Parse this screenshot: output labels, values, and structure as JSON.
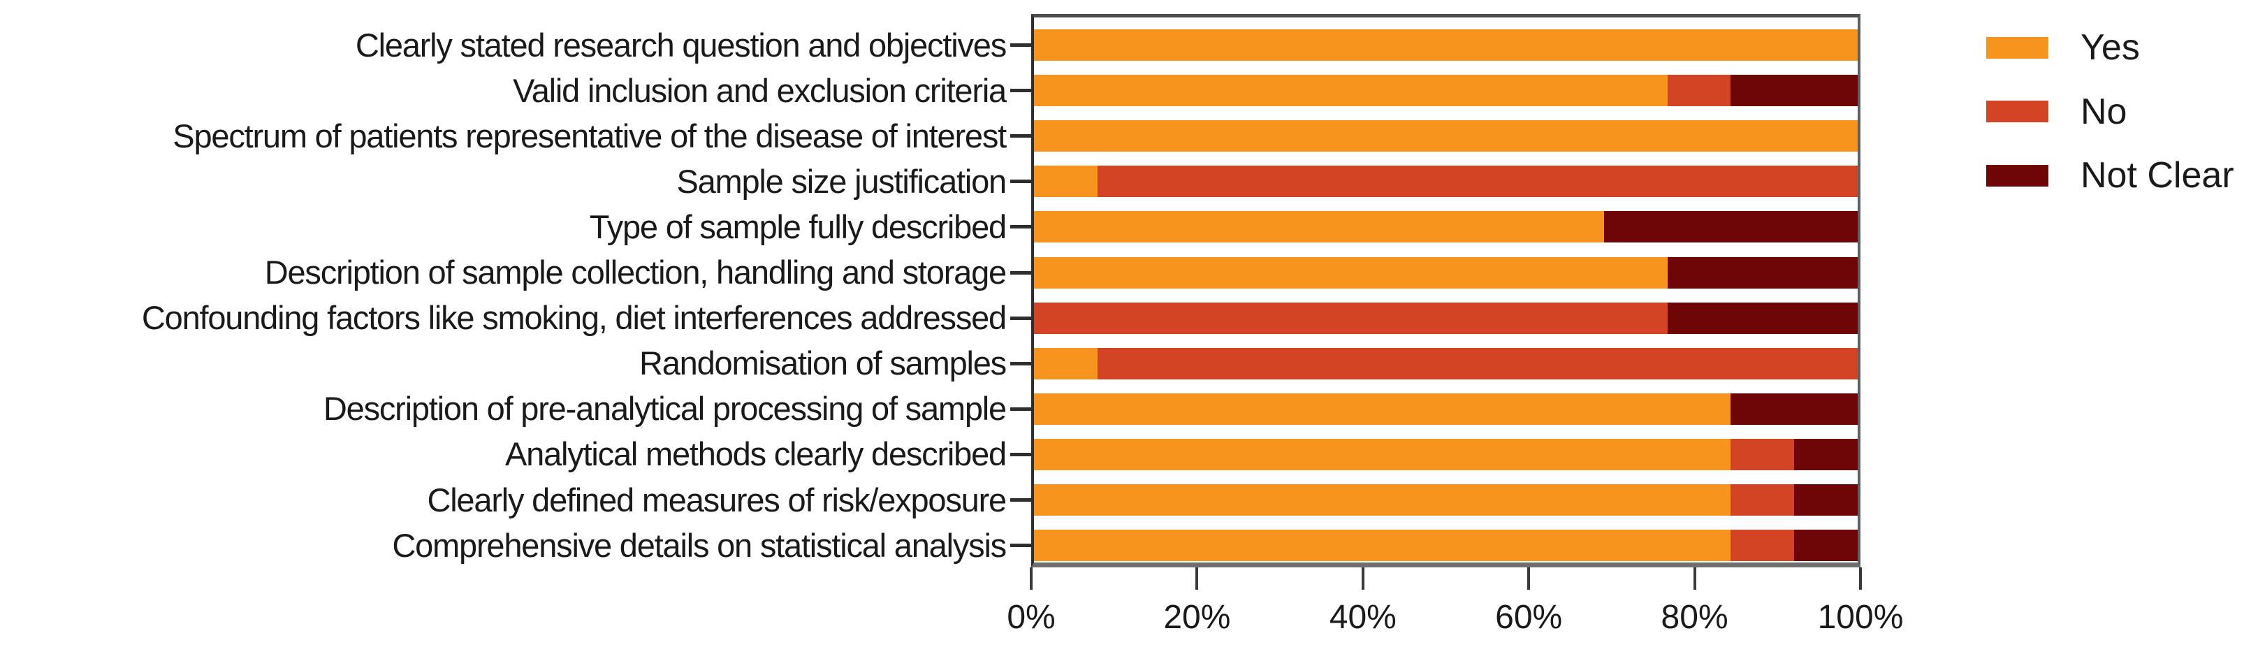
{
  "chart_data": {
    "type": "bar",
    "stacked": true,
    "orientation": "horizontal",
    "title": "",
    "xlabel": "",
    "ylabel": "",
    "xlim": [
      0,
      100
    ],
    "grid": false,
    "legend_position": "right",
    "x_ticks": [
      "0%",
      "20%",
      "40%",
      "60%",
      "80%",
      "100%"
    ],
    "x_tick_values": [
      0,
      20,
      40,
      60,
      80,
      100
    ],
    "categories": [
      "Clearly stated research question and objectives",
      "Valid inclusion and exclusion criteria",
      "Spectrum of patients representative of the disease of interest",
      "Sample size justification",
      "Type of sample fully described",
      "Description of sample collection, handling and storage",
      "Confounding factors like smoking, diet interferences addressed",
      "Randomisation of samples",
      "Description of pre-analytical processing of sample",
      "Analytical methods clearly described",
      "Clearly defined measures of risk/exposure",
      "Comprehensive details on statistical analysis"
    ],
    "series": [
      {
        "name": "Yes",
        "color": "#F7941E",
        "values": [
          100,
          76.9,
          100,
          7.7,
          69.2,
          76.9,
          0,
          7.7,
          84.6,
          84.6,
          84.6,
          84.6
        ]
      },
      {
        "name": "No",
        "color": "#D34424",
        "values": [
          0,
          7.7,
          0,
          92.3,
          0,
          0,
          76.9,
          92.3,
          0,
          7.7,
          7.7,
          7.7
        ]
      },
      {
        "name": "Not Clear",
        "color": "#6E0507",
        "values": [
          0,
          15.4,
          0,
          0,
          30.8,
          23.1,
          23.1,
          0,
          15.4,
          7.7,
          7.7,
          7.7
        ]
      }
    ],
    "legend": [
      {
        "name": "Yes",
        "color": "#F7941E"
      },
      {
        "name": "No",
        "color": "#D34424"
      },
      {
        "name": "Not Clear",
        "color": "#6E0507"
      }
    ]
  }
}
